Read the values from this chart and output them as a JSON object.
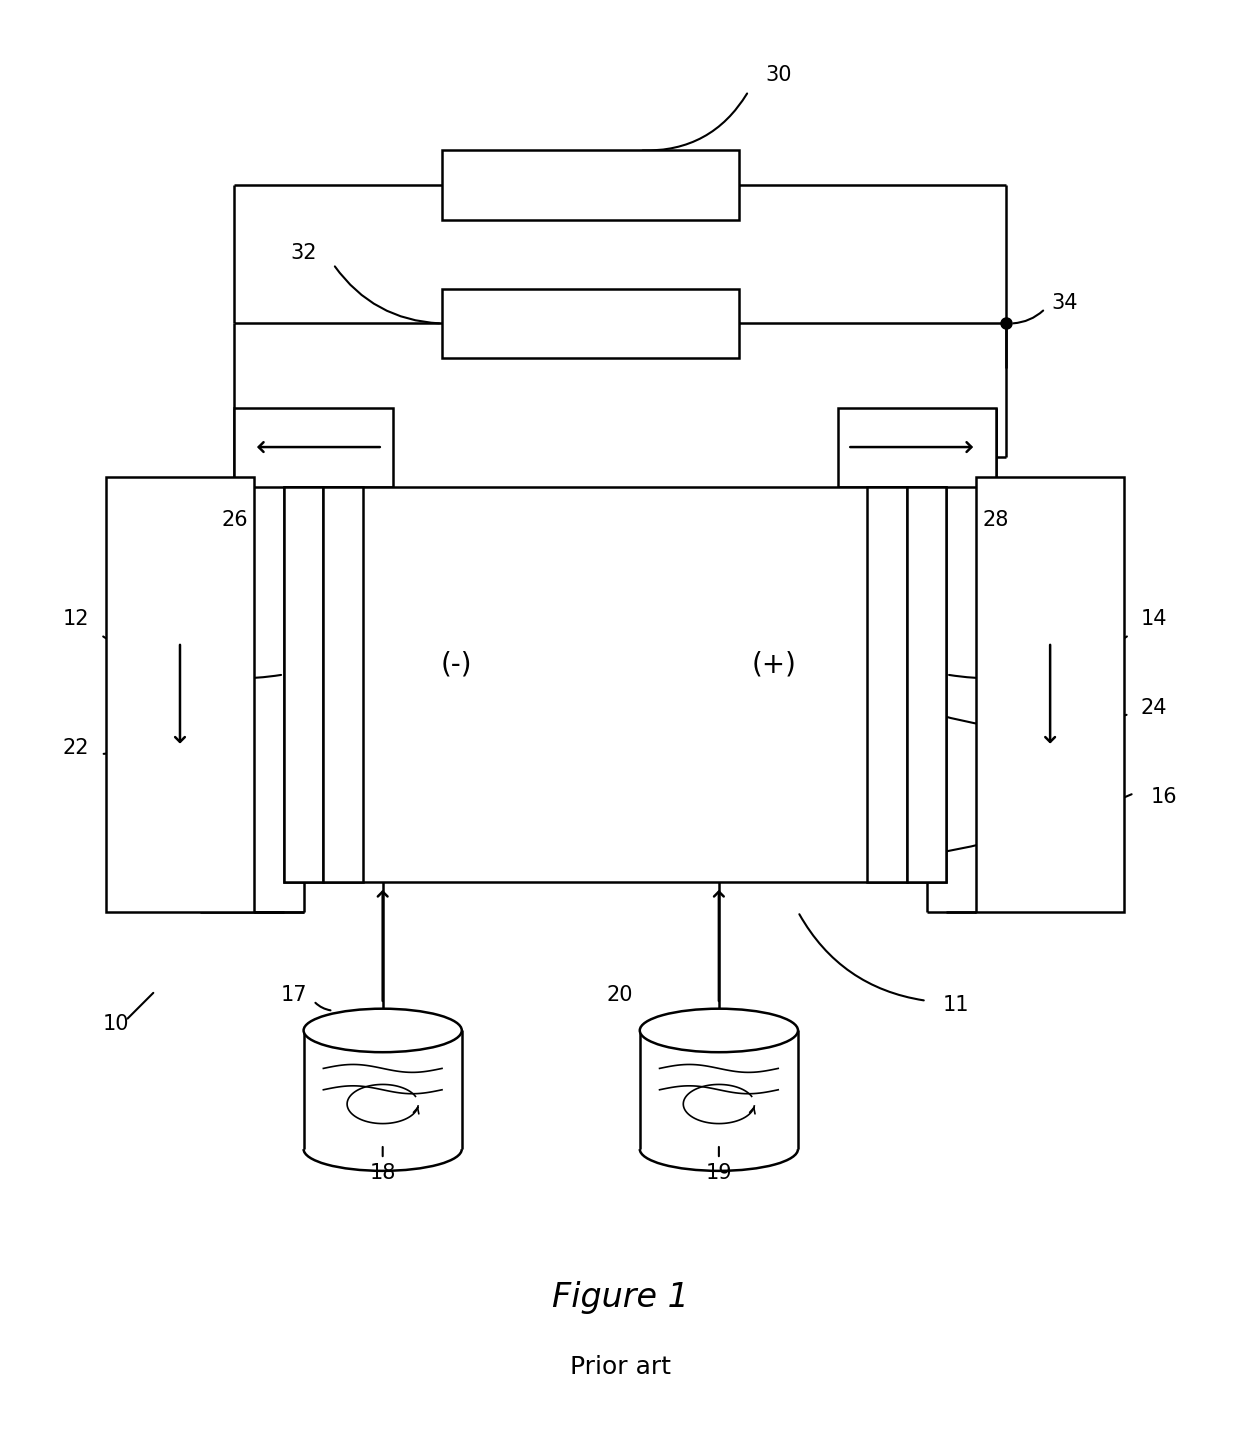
{
  "bg_color": "#ffffff",
  "line_color": "#000000",
  "lw": 1.8,
  "fig_title": "Figure 1",
  "fig_subtitle": "Prior art",
  "title_fontsize": 24,
  "subtitle_fontsize": 18,
  "label_fontsize": 15
}
